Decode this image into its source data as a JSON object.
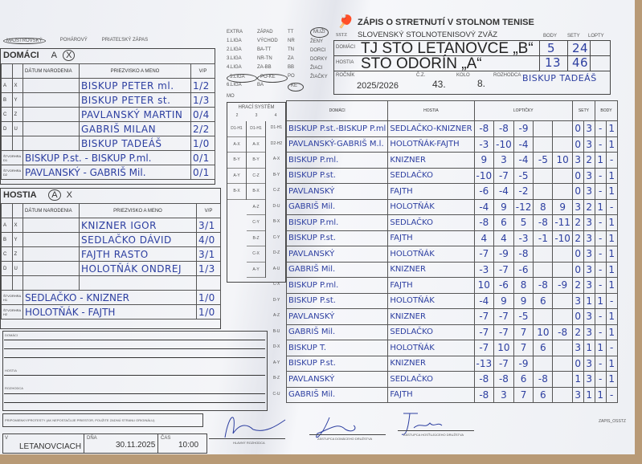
{
  "header": {
    "title": "ZÁPIS O STRETNUTÍ V STOLNOM TENISE",
    "federation": "SLOVENSKÝ STOLNOTENISOVÝ ZVÄZ",
    "logo_text": "SSTZ",
    "col_body": "BODY",
    "col_sety": "SETY",
    "col_lopty": "LOPTY",
    "home_label": "DOMÁCI",
    "home_team": "TJ STO LETANOVCE „B“",
    "home_body": "5",
    "home_sety": "24",
    "guest_label": "HOSTIA",
    "guest_team": "STO ODORÍN „A“",
    "guest_body": "13",
    "guest_sety": "46",
    "rocnik_label": "ROČNÍK",
    "rocnik": "2025/2026",
    "cz_label": "Č.Z.",
    "cz": "43.",
    "kolo_label": "KOLO",
    "kolo": "8.",
    "rozhodca_label": "ROZHODCA",
    "rozhodca": "BISKUP TADEÁŠ"
  },
  "categories": {
    "items": [
      "MUŽI",
      "ŽENY",
      "DORCI",
      "DORKY",
      "ŽIACI",
      "ŽIAČKY"
    ],
    "selected": "MUŽI"
  },
  "match_type": {
    "items": [
      "MAJSTROVSKÝ",
      "POHÁROVÝ",
      "PRIATEĽSKÝ ZÁPAS"
    ],
    "selected": "MAJSTROVSKÝ"
  },
  "leagues": {
    "rows": [
      [
        "EXTRA",
        "ZÁPAD",
        "TT"
      ],
      [
        "1.LIGA",
        "VÝCHOD",
        "NR"
      ],
      [
        "2.LIGA",
        "BA-TT",
        "TN"
      ],
      [
        "3.LIGA",
        "NR-TN",
        "ZA"
      ],
      [
        "4.LIGA",
        "ZA-BB",
        "BB"
      ],
      [
        "5.LIGA",
        "PO-KE",
        "PO"
      ],
      [
        "6.LIGA",
        "BA",
        "KE"
      ]
    ],
    "circled": [
      "5.LIGA",
      "PO-KE",
      "KE"
    ],
    "mo_label": "MO"
  },
  "home_roster": {
    "title": "DOMÁCI",
    "side_a": "A",
    "side_x": "X",
    "circled": "X",
    "col_date": "DÁTUM NARODENIA",
    "col_name": "PRIEZVISKO A MENO",
    "col_vp": "V/P",
    "players": [
      {
        "c1": "A",
        "c2": "X",
        "name": "BISKUP PETER ml.",
        "vp": "1/2"
      },
      {
        "c1": "B",
        "c2": "Y",
        "name": "BISKUP PETER st.",
        "vp": "1/3"
      },
      {
        "c1": "C",
        "c2": "Z",
        "name": "PAVLANSKÝ MARTIN",
        "vp": "0/4"
      },
      {
        "c1": "D",
        "c2": "U",
        "name": "GABRIŠ MILAN",
        "vp": "2/2"
      },
      {
        "c1": "",
        "c2": "",
        "name": "BISKUP TADEÁŠ",
        "vp": "1/0"
      }
    ],
    "doubles": [
      {
        "label": "ŠTVORHRA D1",
        "name": "BISKUP P.st. - BISKUP P.ml.",
        "vp": "0/1"
      },
      {
        "label": "ŠTVORHRA D2",
        "name": "PAVLANSKÝ - GABRIŠ Mil.",
        "vp": "0/1"
      }
    ]
  },
  "guest_roster": {
    "title": "HOSTIA",
    "side_a": "A",
    "side_x": "X",
    "circled": "A",
    "col_date": "DÁTUM NARODENIA",
    "col_name": "PRIEZVISKO A MENO",
    "col_vp": "V/P",
    "players": [
      {
        "c1": "A",
        "c2": "X",
        "name": "KNIZNER IGOR",
        "vp": "3/1"
      },
      {
        "c1": "B",
        "c2": "Y",
        "name": "SEDLAČKO DÁVID",
        "vp": "4/0"
      },
      {
        "c1": "C",
        "c2": "Z",
        "name": "FAJTH RASTO",
        "vp": "3/1"
      },
      {
        "c1": "D",
        "c2": "U",
        "name": "HOLOTŇÁK ONDREJ",
        "vp": "1/3"
      },
      {
        "c1": "",
        "c2": "",
        "name": "",
        "vp": ""
      }
    ],
    "doubles": [
      {
        "label": "ŠTVORHRA H1",
        "name": "SEDLAČKO - KNIZNER",
        "vp": "1/0"
      },
      {
        "label": "ŠTVORHRA H2",
        "name": "HOLOTŇÁK - FAJTH",
        "vp": "1/0"
      }
    ]
  },
  "system": {
    "title": "HRACÍ SYSTÉM",
    "col_heads": [
      "2",
      "3",
      "4"
    ],
    "col2": [
      "D1-H1",
      "A-X",
      "B-Y",
      "A-Y",
      "B-X"
    ],
    "col3": [
      "D1-H1",
      "A-X",
      "B-Y",
      "C-Z",
      "B-X",
      "A-Z",
      "C-Y",
      "B-Z",
      "C-X",
      "A-Y"
    ],
    "col4": [
      "D1-H1",
      "D2-H2",
      "A-X",
      "B-Y",
      "C-Z",
      "D-U",
      "B-X",
      "C-Y",
      "D-Z",
      "A-U",
      "C-X",
      "D-Y",
      "A-Z",
      "B-U",
      "D-X",
      "A-Y",
      "B-Z",
      "C-U"
    ]
  },
  "matches": {
    "col_home": "DOMÁCI",
    "col_guest": "HOSTIA",
    "col_balls": "LOPTIČKY",
    "col_sets": "SETY",
    "col_points": "BODY",
    "rows": [
      {
        "home": "BISKUP P.st.-BISKUP P.ml",
        "guest": "SEDLAČKO-KNIZNER",
        "sets": [
          "-8",
          "-8",
          "-9",
          "",
          ""
        ],
        "sh": "0",
        "sg": "3",
        "bh": "-",
        "bg": "1"
      },
      {
        "home": "PAVLANSKÝ-GABRIŠ M.l.",
        "guest": "HOLOTŇÁK-FAJTH",
        "sets": [
          "-3",
          "-10",
          "-4",
          "",
          ""
        ],
        "sh": "0",
        "sg": "3",
        "bh": "-",
        "bg": "1"
      },
      {
        "home": "BISKUP P.ml.",
        "guest": "KNIZNER",
        "sets": [
          "9",
          "3",
          "-4",
          "-5",
          "10"
        ],
        "sh": "3",
        "sg": "2",
        "bh": "1",
        "bg": "-"
      },
      {
        "home": "BISKUP P.st.",
        "guest": "SEDLAČKO",
        "sets": [
          "-10",
          "-7",
          "-5",
          "",
          ""
        ],
        "sh": "0",
        "sg": "3",
        "bh": "-",
        "bg": "1"
      },
      {
        "home": "PAVLANSKÝ",
        "guest": "FAJTH",
        "sets": [
          "-6",
          "-4",
          "-2",
          "",
          ""
        ],
        "sh": "0",
        "sg": "3",
        "bh": "-",
        "bg": "1"
      },
      {
        "home": "GABRIŠ Mil.",
        "guest": "HOLOTŇÁK",
        "sets": [
          "-4",
          "9",
          "-12",
          "8",
          "9"
        ],
        "sh": "3",
        "sg": "2",
        "bh": "1",
        "bg": "-"
      },
      {
        "home": "BISKUP P.ml.",
        "guest": "SEDLAČKO",
        "sets": [
          "-8",
          "6",
          "5",
          "-8",
          "-11"
        ],
        "sh": "2",
        "sg": "3",
        "bh": "-",
        "bg": "1"
      },
      {
        "home": "BISKUP P.st.",
        "guest": "FAJTH",
        "sets": [
          "4",
          "4",
          "-3",
          "-1",
          "-10"
        ],
        "sh": "2",
        "sg": "3",
        "bh": "-",
        "bg": "1"
      },
      {
        "home": "PAVLANSKÝ",
        "guest": "HOLOTŇÁK",
        "sets": [
          "-7",
          "-9",
          "-8",
          "",
          ""
        ],
        "sh": "0",
        "sg": "3",
        "bh": "-",
        "bg": "1"
      },
      {
        "home": "GABRIŠ Mil.",
        "guest": "KNIZNER",
        "sets": [
          "-3",
          "-7",
          "-6",
          "",
          ""
        ],
        "sh": "0",
        "sg": "3",
        "bh": "-",
        "bg": "1"
      },
      {
        "home": "BISKUP P.ml.",
        "guest": "FAJTH",
        "sets": [
          "10",
          "-6",
          "8",
          "-8",
          "-9"
        ],
        "sh": "2",
        "sg": "3",
        "bh": "-",
        "bg": "1"
      },
      {
        "home": "BISKUP P.st.",
        "guest": "HOLOTŇÁK",
        "sets": [
          "-4",
          "9",
          "9",
          "6",
          ""
        ],
        "sh": "3",
        "sg": "1",
        "bh": "1",
        "bg": "-"
      },
      {
        "home": "PAVLANSKÝ",
        "guest": "KNIZNER",
        "sets": [
          "-7",
          "-7",
          "-5",
          "",
          ""
        ],
        "sh": "0",
        "sg": "3",
        "bh": "-",
        "bg": "1"
      },
      {
        "home": "GABRIŠ Mil.",
        "guest": "SEDLAČKO",
        "sets": [
          "-7",
          "-7",
          "7",
          "10",
          "-8"
        ],
        "sh": "2",
        "sg": "3",
        "bh": "-",
        "bg": "1"
      },
      {
        "home": "BISKUP T.",
        "guest": "HOLOTŇÁK",
        "sets": [
          "-7",
          "10",
          "7",
          "6",
          ""
        ],
        "sh": "3",
        "sg": "1",
        "bh": "1",
        "bg": "-"
      },
      {
        "home": "BISKUP P.st.",
        "guest": "KNIZNER",
        "sets": [
          "-13",
          "-7",
          "-9",
          "",
          ""
        ],
        "sh": "0",
        "sg": "3",
        "bh": "-",
        "bg": "1"
      },
      {
        "home": "PAVLANSKÝ",
        "guest": "SEDLAČKO",
        "sets": [
          "-8",
          "-8",
          "6",
          "-8",
          ""
        ],
        "sh": "1",
        "sg": "3",
        "bh": "-",
        "bg": "1"
      },
      {
        "home": "GABRIŠ Mil.",
        "guest": "FAJTH",
        "sets": [
          "-8",
          "3",
          "7",
          "6",
          ""
        ],
        "sh": "3",
        "sg": "1",
        "bh": "1",
        "bg": "-"
      }
    ]
  },
  "notes": {
    "home": "DOMÁCI",
    "guest": "HOSTIA",
    "referee": "ROZHODCA",
    "protests": "PRIPOMIENKY/PROTESTY (AK NEPOSTAČUJE PRIESTOR, POUŽITE ZADNÚ STRANU ORIGINÁLU)"
  },
  "footer": {
    "place_label": "V",
    "place": "LETANOVCIACH",
    "date_label": "DŇA",
    "date": "30.11.2025",
    "time_label": "ČAS",
    "time": "10:00",
    "sig_referee": "HLAVNÝ ROZHODCA",
    "sig_home": "ZÁSTUPCA DOMÁCEHO DRUŽSTVA",
    "sig_guest": "ZÁSTUPCA HOSŤUJÚCEHO DRUŽSTVA",
    "form_id": "ZAPIS_OSSTZ"
  },
  "colors": {
    "ink": "#2c3ea0",
    "paper": "#eef0f4",
    "wood": "#b89a76"
  }
}
